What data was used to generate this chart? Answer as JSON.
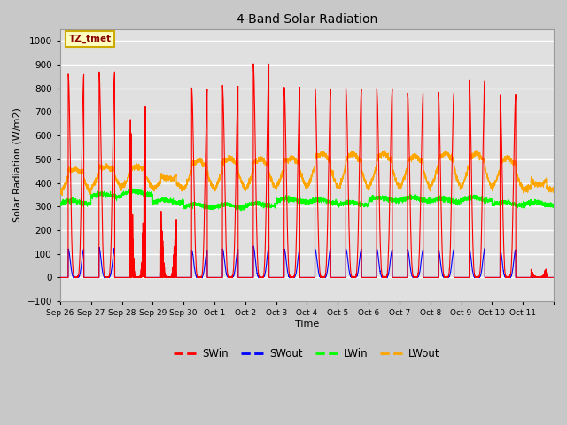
{
  "title": "4-Band Solar Radiation",
  "xlabel": "Time",
  "ylabel": "Solar Radiation (W/m2)",
  "ylim": [
    -100,
    1050
  ],
  "yticks": [
    -100,
    0,
    100,
    200,
    300,
    400,
    500,
    600,
    700,
    800,
    900,
    1000
  ],
  "fig_facecolor": "#c8c8c8",
  "ax_facecolor": "#e0e0e0",
  "grid_color": "white",
  "x_tick_labels": [
    "Sep 26",
    "Sep 27",
    "Sep 28",
    "Sep 29",
    "Sep 30",
    "Oct 1",
    "Oct 2",
    "Oct 3",
    "Oct 4",
    "Oct 5",
    "Oct 6",
    "Oct 7",
    "Oct 8",
    "Oct 9",
    "Oct 10",
    "Oct 11"
  ],
  "num_days": 16,
  "pts_per_day": 288,
  "SWin_peaks": [
    860,
    870,
    570,
    220,
    800,
    810,
    900,
    805,
    800,
    800,
    800,
    780,
    780,
    835,
    775,
    30
  ],
  "SWout_peaks": [
    120,
    125,
    65,
    20,
    115,
    120,
    130,
    120,
    120,
    120,
    118,
    118,
    118,
    122,
    118,
    5
  ],
  "LWin_base": [
    310,
    340,
    350,
    315,
    295,
    295,
    300,
    320,
    315,
    305,
    325,
    325,
    320,
    325,
    305,
    305
  ],
  "LWout_night": [
    360,
    380,
    385,
    375,
    375,
    375,
    375,
    385,
    385,
    375,
    382,
    382,
    385,
    385,
    378,
    368
  ],
  "LWout_peak": [
    460,
    470,
    470,
    420,
    495,
    505,
    500,
    505,
    525,
    525,
    525,
    515,
    525,
    525,
    505,
    395
  ],
  "SWin_cloudy": [
    false,
    false,
    true,
    true,
    false,
    false,
    false,
    false,
    false,
    false,
    false,
    false,
    false,
    false,
    false,
    true
  ],
  "sunrise": 0.26,
  "sunset": 0.77
}
